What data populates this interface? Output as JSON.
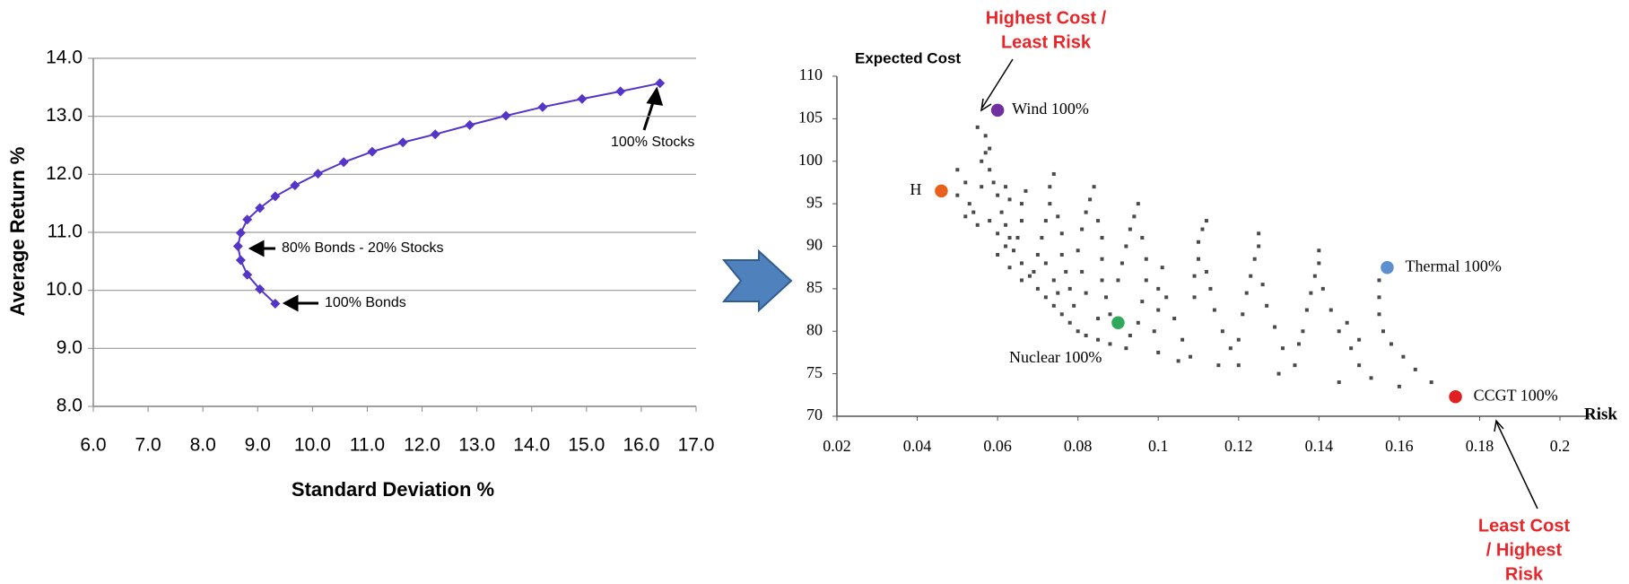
{
  "chart_data": [
    {
      "type": "line",
      "x_label": "Standard Deviation %",
      "y_label": "Average Return %",
      "xlim": [
        6,
        17
      ],
      "ylim": [
        8,
        14
      ],
      "xticks": [
        {
          "value": 6,
          "label": "6.0"
        },
        {
          "value": 7,
          "label": "7.0"
        },
        {
          "value": 8,
          "label": "8.0"
        },
        {
          "value": 9,
          "label": "9.0"
        },
        {
          "value": 10,
          "label": "10.0"
        },
        {
          "value": 11,
          "label": "11.0"
        },
        {
          "value": 12,
          "label": "12.0"
        },
        {
          "value": 13,
          "label": "13.0"
        },
        {
          "value": 14,
          "label": "14.0"
        },
        {
          "value": 15,
          "label": "15.0"
        },
        {
          "value": 16,
          "label": "16.0"
        },
        {
          "value": 17,
          "label": "17.0"
        }
      ],
      "yticks": [
        {
          "value": 8,
          "label": "8.0"
        },
        {
          "value": 9,
          "label": "9.0"
        },
        {
          "value": 10,
          "label": "10.0"
        },
        {
          "value": 11,
          "label": "11.0"
        },
        {
          "value": 12,
          "label": "12.0"
        },
        {
          "value": 13,
          "label": "13.0"
        },
        {
          "value": 14,
          "label": "14.0"
        }
      ],
      "grid": true,
      "series": [
        {
          "color": "#5535c8",
          "x": [
            9.32,
            9.04,
            8.81,
            8.69,
            8.64,
            8.69,
            8.81,
            9.04,
            9.32,
            9.68,
            10.1,
            10.57,
            11.09,
            11.65,
            12.24,
            12.87,
            13.53,
            14.2,
            14.92,
            15.62,
            16.34
          ],
          "values": [
            9.77,
            10.02,
            10.27,
            10.52,
            10.76,
            10.99,
            11.22,
            11.42,
            11.62,
            11.81,
            12.01,
            12.21,
            12.39,
            12.55,
            12.69,
            12.85,
            13.01,
            13.16,
            13.3,
            13.43,
            13.57
          ]
        }
      ],
      "annotations": [
        "100% Stocks",
        "80% Bonds -  20% Stocks",
        "100% Bonds"
      ]
    },
    {
      "type": "scatter",
      "x_label": "Risk",
      "y_label": "Expected Cost",
      "xlim": [
        0.02,
        0.2
      ],
      "ylim": [
        70,
        110
      ],
      "xticks": [
        0.02,
        0.04,
        0.06,
        0.08,
        0.1,
        0.12,
        0.14,
        0.16,
        0.18,
        0.2
      ],
      "yticks": [
        70,
        75,
        80,
        85,
        90,
        95,
        100,
        105,
        110
      ],
      "series": [
        {
          "color": "#4a4a4a",
          "x": [
            0.05,
            0.052,
            0.05,
            0.053,
            0.052,
            0.055,
            0.054,
            0.056,
            0.057,
            0.056,
            0.055,
            0.057,
            0.058,
            0.058,
            0.059,
            0.06,
            0.061,
            0.062,
            0.063,
            0.064,
            0.066,
            0.068,
            0.07,
            0.072,
            0.074,
            0.076,
            0.078,
            0.08,
            0.082,
            0.085,
            0.088,
            0.058,
            0.06,
            0.062,
            0.065,
            0.066,
            0.066,
            0.067,
            0.063,
            0.062,
            0.06,
            0.063,
            0.066,
            0.069,
            0.07,
            0.071,
            0.072,
            0.073,
            0.073,
            0.074,
            0.075,
            0.076,
            0.076,
            0.077,
            0.078,
            0.074,
            0.072,
            0.075,
            0.079,
            0.082,
            0.081,
            0.08,
            0.081,
            0.082,
            0.083,
            0.084,
            0.085,
            0.086,
            0.086,
            0.086,
            0.087,
            0.088,
            0.085,
            0.09,
            0.091,
            0.092,
            0.093,
            0.094,
            0.095,
            0.096,
            0.097,
            0.097,
            0.096,
            0.095,
            0.093,
            0.092,
            0.099,
            0.1,
            0.1,
            0.101,
            0.102,
            0.104,
            0.106,
            0.108,
            0.109,
            0.109,
            0.11,
            0.11,
            0.111,
            0.112,
            0.112,
            0.113,
            0.114,
            0.116,
            0.118,
            0.12,
            0.121,
            0.122,
            0.123,
            0.124,
            0.125,
            0.125,
            0.126,
            0.127,
            0.129,
            0.131,
            0.134,
            0.136,
            0.137,
            0.138,
            0.139,
            0.14,
            0.14,
            0.141,
            0.143,
            0.145,
            0.148,
            0.15,
            0.153,
            0.155,
            0.155,
            0.155,
            0.156,
            0.158,
            0.161,
            0.164,
            0.168,
            0.105,
            0.115,
            0.13,
            0.145,
            0.16,
            0.1,
            0.12,
            0.135,
            0.15,
            0.147
          ],
          "values": [
            99,
            97.5,
            96,
            95,
            93.5,
            92.5,
            94,
            97,
            101,
            100,
            104,
            103,
            101.5,
            99,
            97.5,
            96,
            94,
            92.5,
            91,
            89.5,
            88,
            86.5,
            85,
            84,
            83,
            82,
            81,
            80,
            79.5,
            79,
            78.5,
            93,
            91.5,
            90,
            91,
            93,
            95,
            96.5,
            95.5,
            97,
            89,
            87.5,
            86,
            87,
            89,
            91,
            93,
            95,
            97,
            98.5,
            93.5,
            91.5,
            89,
            87,
            85,
            86,
            88,
            84.5,
            83,
            84.5,
            87,
            89.5,
            92,
            94,
            95.5,
            97,
            93,
            91,
            88.5,
            86,
            84,
            82,
            81.5,
            86,
            88,
            90,
            92,
            93.5,
            95,
            91,
            88.5,
            86,
            83.5,
            81,
            79.5,
            78,
            80,
            82.5,
            85,
            87.5,
            84,
            81.5,
            79,
            77,
            84,
            86.5,
            88.5,
            90.5,
            92,
            93,
            87,
            85,
            82.5,
            80,
            78,
            76,
            82,
            84.5,
            86.5,
            88.5,
            90,
            91.5,
            85.5,
            83,
            80.5,
            78,
            76,
            80,
            82.5,
            84.5,
            86.5,
            88,
            89.5,
            85,
            82.5,
            80,
            78,
            76,
            74.5,
            86,
            84,
            82,
            80,
            78.5,
            77,
            75.5,
            74,
            76.5,
            76,
            75,
            74,
            73.5,
            77.5,
            79,
            78.5,
            79,
            81
          ]
        }
      ],
      "points": [
        {
          "label": "Wind 100%",
          "x": 0.06,
          "y": 106,
          "color": "#7030a0"
        },
        {
          "label": "H",
          "x": 0.046,
          "y": 96.5,
          "color": "#e8601c"
        },
        {
          "label": "Thermal 100%",
          "x": 0.157,
          "y": 87.5,
          "color": "#5b8fd0"
        },
        {
          "label": "Nuclear 100%",
          "x": 0.09,
          "y": 81,
          "color": "#2ea85a"
        },
        {
          "label": "CCGT 100%",
          "x": 0.174,
          "y": 72.3,
          "color": "#e02020"
        }
      ],
      "annotations": [
        [
          "Highest Cost  /",
          "Least Risk"
        ],
        [
          "Least Cost",
          "/ Highest",
          "Risk"
        ]
      ]
    }
  ]
}
